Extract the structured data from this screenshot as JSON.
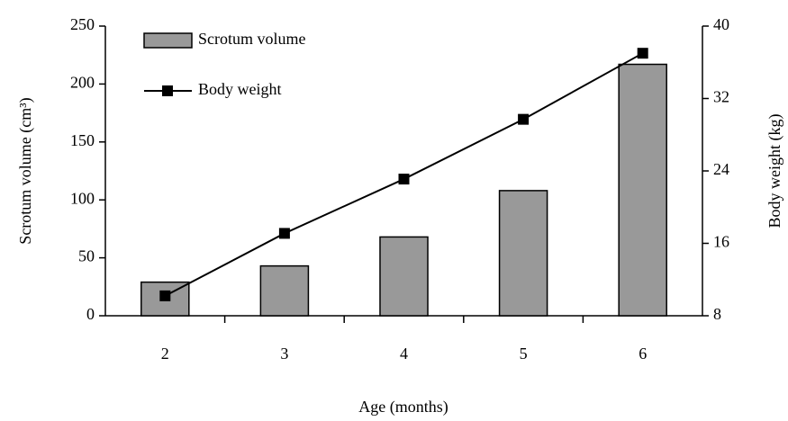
{
  "chart_data": {
    "type": "bar-line",
    "xlabel": "Age (months)",
    "ylabel": "Scrotum volume (cm³)",
    "y2label": "Body weight (kg)",
    "categories": [
      "2",
      "3",
      "4",
      "5",
      "6"
    ],
    "series": [
      {
        "name": "Scrotum volume",
        "type": "bar",
        "color": "#999999",
        "values": [
          29,
          43,
          68,
          108,
          217
        ]
      },
      {
        "name": "Body weight",
        "type": "line",
        "axis": "y2",
        "color": "#000000",
        "values": [
          10.2,
          17.1,
          23.1,
          29.7,
          37.0
        ]
      }
    ],
    "ylim": [
      0,
      250
    ],
    "yticks": [
      0,
      50,
      100,
      150,
      200,
      250
    ],
    "y2lim": [
      8,
      40
    ],
    "y2ticks": [
      8,
      16,
      24,
      32,
      40
    ],
    "legend": "upper left"
  }
}
